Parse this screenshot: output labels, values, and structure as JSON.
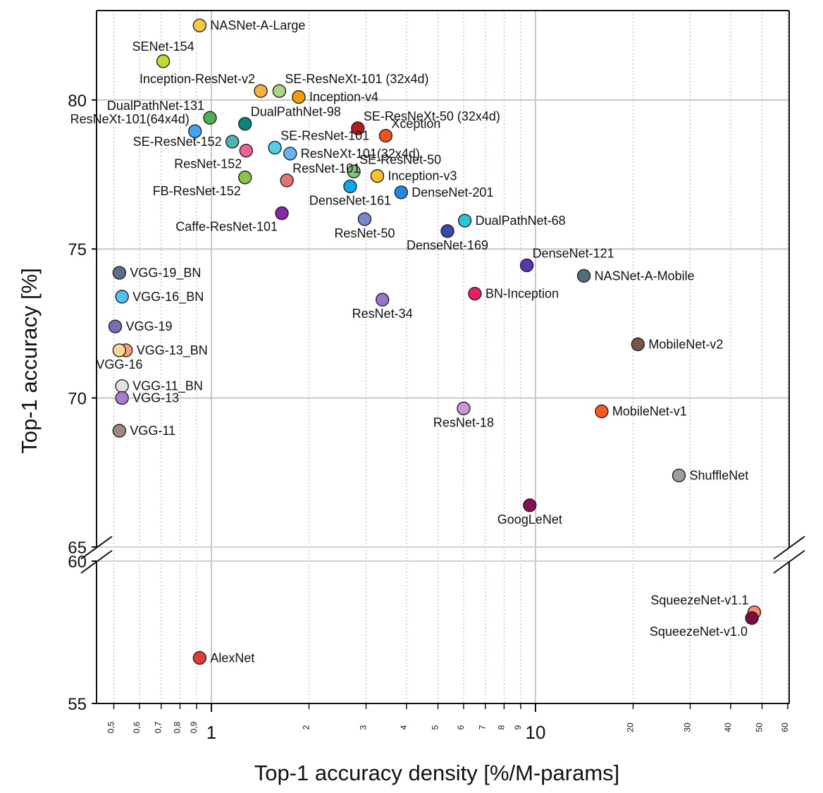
{
  "chart_data": {
    "type": "scatter",
    "title": "",
    "xlabel": "Top-1 accuracy density [%/M-params]",
    "ylabel": "Top-1 accuracy [%]",
    "x_scale": "log",
    "xlim": [
      0.45,
      60
    ],
    "ylim_upper": [
      65,
      83
    ],
    "ylim_lower": [
      55,
      60
    ],
    "y_ticks_upper": [
      "65",
      "70",
      "75",
      "80"
    ],
    "y_ticks_lower": [
      "55",
      "60"
    ],
    "x_major_ticks": [
      {
        "v": 1,
        "label": "1"
      },
      {
        "v": 10,
        "label": "10"
      }
    ],
    "x_minor_ticks": [
      {
        "v": 0.5,
        "label": "0,5"
      },
      {
        "v": 0.6,
        "label": "0,6"
      },
      {
        "v": 0.7,
        "label": "0,7"
      },
      {
        "v": 0.8,
        "label": "0,8"
      },
      {
        "v": 0.9,
        "label": "0,9"
      },
      {
        "v": 2,
        "label": "2"
      },
      {
        "v": 3,
        "label": "3"
      },
      {
        "v": 4,
        "label": "4"
      },
      {
        "v": 5,
        "label": "5"
      },
      {
        "v": 6,
        "label": "6"
      },
      {
        "v": 7,
        "label": "7"
      },
      {
        "v": 8,
        "label": "8"
      },
      {
        "v": 9,
        "label": "9"
      },
      {
        "v": 20,
        "label": "20"
      },
      {
        "v": 30,
        "label": "30"
      },
      {
        "v": 40,
        "label": "40"
      },
      {
        "v": 50,
        "label": "50"
      },
      {
        "v": 60,
        "label": "60"
      }
    ],
    "grid": true,
    "points": [
      {
        "name": "NASNet-A-Large",
        "x": 0.92,
        "y": 82.5,
        "color": "#f5c842",
        "label_pos": "right"
      },
      {
        "name": "SENet-154",
        "x": 0.71,
        "y": 81.3,
        "color": "#c6d930",
        "label_pos": "above"
      },
      {
        "name": "Inception-ResNet-v2",
        "x": 1.42,
        "y": 80.3,
        "color": "#f9b040",
        "label_pos": "left-above"
      },
      {
        "name": "SE-ResNeXt-101 (32x4d)",
        "x": 1.62,
        "y": 80.3,
        "color": "#a9d67f",
        "label_pos": "right-above"
      },
      {
        "name": "Inception-v4",
        "x": 1.86,
        "y": 80.1,
        "color": "#f79a06",
        "label_pos": "right"
      },
      {
        "name": "DualPathNet-131",
        "x": 0.99,
        "y": 79.4,
        "color": "#4caf50",
        "label_pos": "left-above"
      },
      {
        "name": "ResNeXt-101(64x4d)",
        "x": 0.89,
        "y": 78.95,
        "color": "#42a5f5",
        "label_pos": "left-above"
      },
      {
        "name": "DualPathNet-98",
        "x": 1.27,
        "y": 79.2,
        "color": "#00897b",
        "label_pos": "right-above"
      },
      {
        "name": "SE-ResNeXt-50 (32x4d)",
        "x": 2.83,
        "y": 79.05,
        "color": "#b71c1c",
        "label_pos": "right-above"
      },
      {
        "name": "Xception",
        "x": 3.45,
        "y": 78.8,
        "color": "#f4511e",
        "label_pos": "right-above"
      },
      {
        "name": "SE-ResNet-152",
        "x": 1.16,
        "y": 78.6,
        "color": "#4db6ac",
        "label_pos": "left"
      },
      {
        "name": "SE-ResNet-101",
        "x": 1.57,
        "y": 78.4,
        "color": "#4dd0e1",
        "label_pos": "right-above"
      },
      {
        "name": "ResNeXt-101(32x4d)",
        "x": 1.75,
        "y": 78.2,
        "color": "#64b5f6",
        "label_pos": "right"
      },
      {
        "name": "ResNet-152",
        "x": 1.28,
        "y": 78.3,
        "color": "#f06292",
        "label_pos": "left-below"
      },
      {
        "name": "SE-ResNet-50",
        "x": 2.75,
        "y": 77.6,
        "color": "#81c784",
        "label_pos": "right-above"
      },
      {
        "name": "Inception-v3",
        "x": 3.25,
        "y": 77.45,
        "color": "#fbc02d",
        "label_pos": "right"
      },
      {
        "name": "FB-ResNet-152",
        "x": 1.27,
        "y": 77.4,
        "color": "#8bc34a",
        "label_pos": "left-below"
      },
      {
        "name": "ResNet-101",
        "x": 1.71,
        "y": 77.3,
        "color": "#e57373",
        "label_pos": "right-above"
      },
      {
        "name": "DenseNet-161",
        "x": 2.68,
        "y": 77.1,
        "color": "#03a9f4",
        "label_pos": "center-below"
      },
      {
        "name": "DenseNet-201",
        "x": 3.85,
        "y": 76.9,
        "color": "#1e88e5",
        "label_pos": "right"
      },
      {
        "name": "Caffe-ResNet-101",
        "x": 1.65,
        "y": 76.2,
        "color": "#8e24aa",
        "label_pos": "left-below"
      },
      {
        "name": "ResNet-50",
        "x": 2.97,
        "y": 76.0,
        "color": "#7986cb",
        "label_pos": "center-below"
      },
      {
        "name": "DualPathNet-68",
        "x": 6.05,
        "y": 75.95,
        "color": "#26c6da",
        "label_pos": "right"
      },
      {
        "name": "DenseNet-169",
        "x": 5.35,
        "y": 75.6,
        "color": "#3949ab",
        "label_pos": "center-below"
      },
      {
        "name": "DenseNet-121",
        "x": 9.4,
        "y": 74.45,
        "color": "#5e35b1",
        "label_pos": "right-above"
      },
      {
        "name": "NASNet-A-Mobile",
        "x": 14.1,
        "y": 74.1,
        "color": "#546e7a",
        "label_pos": "right"
      },
      {
        "name": "VGG-19_BN",
        "x": 0.52,
        "y": 74.2,
        "color": "#5c6f8a",
        "label_pos": "right"
      },
      {
        "name": "VGG-16_BN",
        "x": 0.53,
        "y": 73.4,
        "color": "#4fc3f7",
        "label_pos": "right"
      },
      {
        "name": "BN-Inception",
        "x": 6.5,
        "y": 73.5,
        "color": "#e91e63",
        "label_pos": "right"
      },
      {
        "name": "ResNet-34",
        "x": 3.37,
        "y": 73.3,
        "color": "#9575cd",
        "label_pos": "center-below"
      },
      {
        "name": "VGG-19",
        "x": 0.505,
        "y": 72.4,
        "color": "#7e6bb5",
        "label_pos": "right"
      },
      {
        "name": "VGG-13_BN",
        "x": 0.545,
        "y": 71.6,
        "color": "#f4a37a",
        "label_pos": "right"
      },
      {
        "name": "VGG-16",
        "x": 0.52,
        "y": 71.6,
        "color": "#fcd59a",
        "label_pos": "center-below"
      },
      {
        "name": "MobileNet-v2",
        "x": 20.7,
        "y": 71.8,
        "color": "#795548",
        "label_pos": "right"
      },
      {
        "name": "VGG-11_BN",
        "x": 0.53,
        "y": 70.4,
        "color": "#e0e0e0",
        "label_pos": "right"
      },
      {
        "name": "VGG-13",
        "x": 0.53,
        "y": 70.0,
        "color": "#ab7bd0",
        "label_pos": "right"
      },
      {
        "name": "ResNet-18",
        "x": 6.0,
        "y": 69.65,
        "color": "#ce93d8",
        "label_pos": "center-below"
      },
      {
        "name": "MobileNet-v1",
        "x": 16.0,
        "y": 69.55,
        "color": "#ff5722",
        "label_pos": "right"
      },
      {
        "name": "VGG-11",
        "x": 0.52,
        "y": 68.9,
        "color": "#a1887f",
        "label_pos": "right"
      },
      {
        "name": "ShuffleNet",
        "x": 27.7,
        "y": 67.4,
        "color": "#9e9e9e",
        "label_pos": "right"
      },
      {
        "name": "GoogLeNet",
        "x": 9.6,
        "y": 66.4,
        "color": "#880e4f",
        "label_pos": "center-below"
      },
      {
        "name": "SqueezeNet-v1.1",
        "x": 47.3,
        "y": 58.2,
        "color": "#ff8a65",
        "label_pos": "left-above"
      },
      {
        "name": "SqueezeNet-v1.0",
        "x": 46.5,
        "y": 58.0,
        "color": "#7b0d37",
        "label_pos": "left-below"
      },
      {
        "name": "AlexNet",
        "x": 0.92,
        "y": 56.6,
        "color": "#e53935",
        "label_pos": "right"
      }
    ]
  }
}
